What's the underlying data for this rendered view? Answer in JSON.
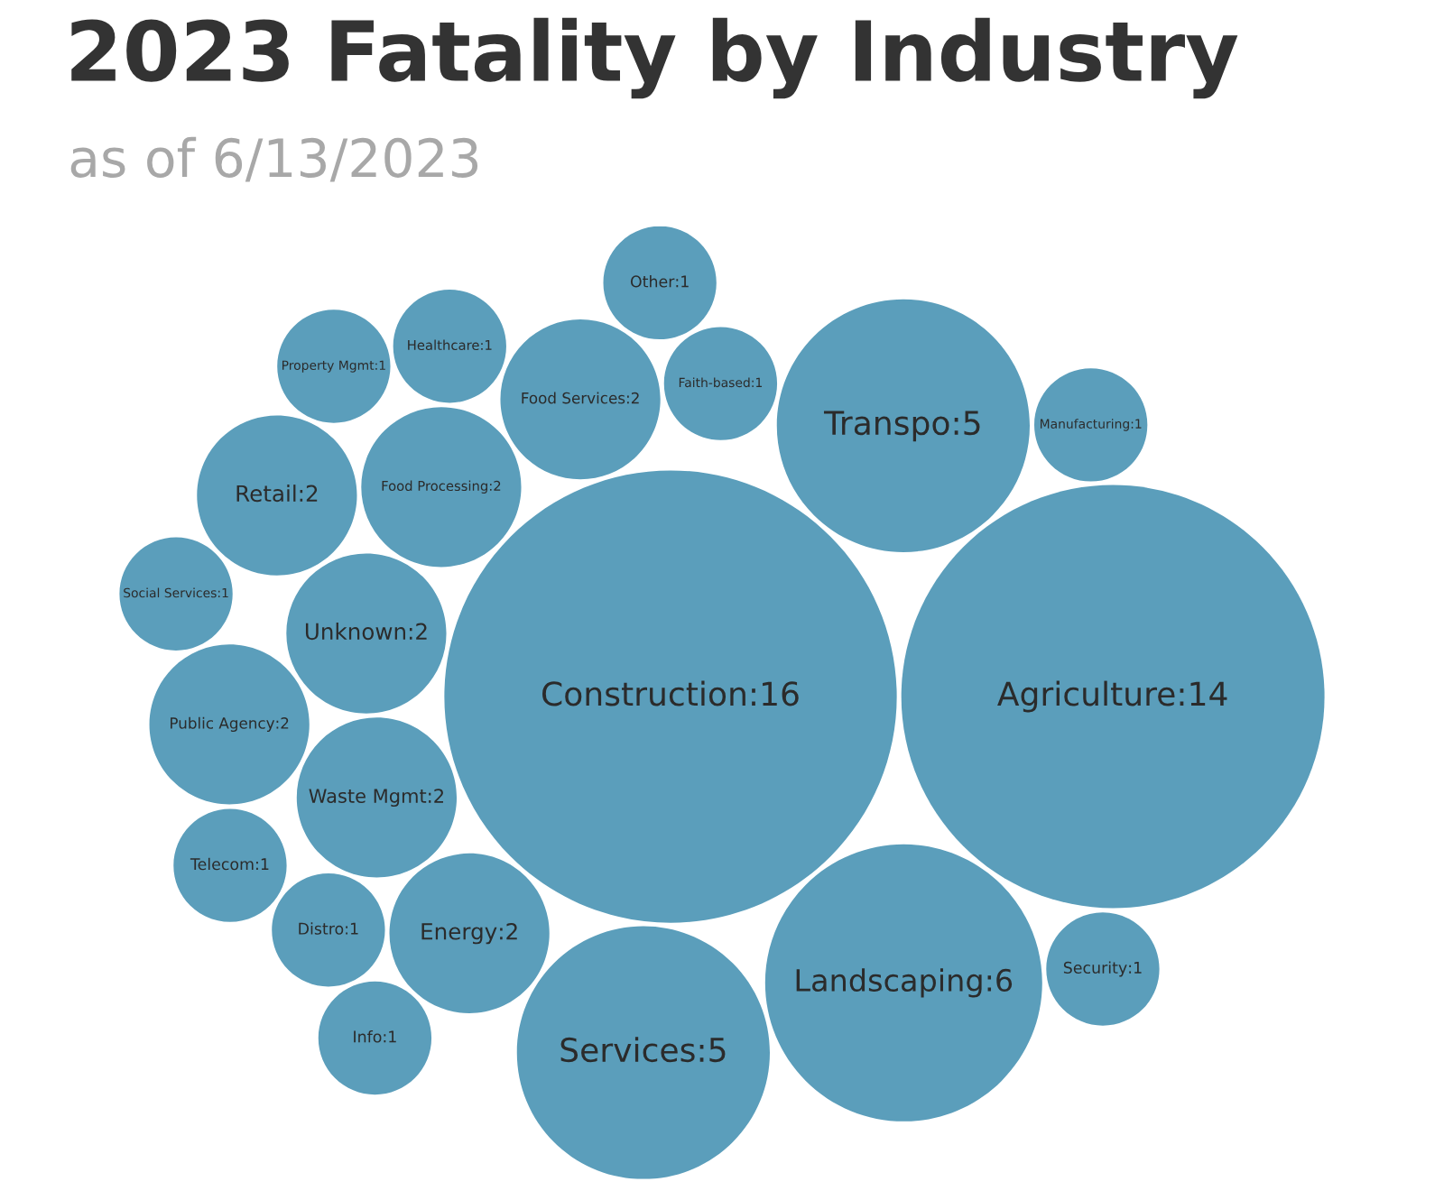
{
  "chart_data": {
    "type": "other",
    "title": "2023 Fatality by Industry",
    "subtitle": "as of 6/13/2023",
    "color": "#5b9ebb",
    "categories": [
      "Construction",
      "Agriculture",
      "Landscaping",
      "Transpo",
      "Services",
      "Energy",
      "Waste Mgmt",
      "Unknown",
      "Food Processing",
      "Food Services",
      "Public Agency",
      "Retail",
      "Faith-based",
      "Distro",
      "Telecom",
      "Social Services",
      "Healthcare",
      "Info",
      "Manufacturing",
      "Other",
      "Property Mgmt",
      "Security"
    ],
    "values": [
      16,
      14,
      6,
      5,
      5,
      2,
      2,
      2,
      2,
      2,
      2,
      2,
      1,
      1,
      1,
      1,
      1,
      1,
      1,
      1,
      1,
      1
    ],
    "value_labels": [
      ":16",
      ":14",
      ":6",
      ":5",
      ":5",
      ":2",
      ":2",
      ":2",
      ":2",
      ":2",
      ":2",
      ":2",
      ":1",
      ":1",
      ":1",
      ":1",
      ":1",
      ":1",
      ":1",
      ":1",
      ":1",
      ":1"
    ]
  }
}
